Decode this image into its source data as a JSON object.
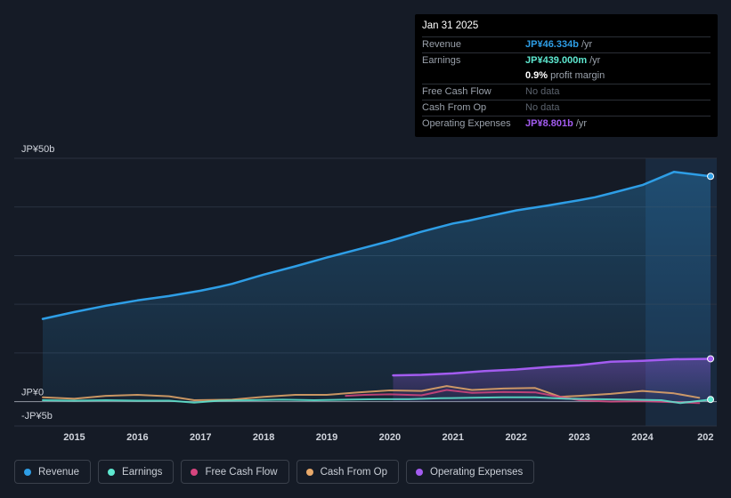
{
  "tooltip": {
    "date": "Jan 31 2025",
    "rows": {
      "revenue": {
        "label": "Revenue",
        "value": "JP¥46.334b",
        "unit": "/yr",
        "color": "#2e9ee6"
      },
      "earnings": {
        "label": "Earnings",
        "value": "JP¥439.000m",
        "unit": "/yr",
        "color": "#5ee8d0"
      },
      "margin": {
        "value": "0.9%",
        "suffix": "profit margin"
      },
      "fcf": {
        "label": "Free Cash Flow",
        "value": "No data"
      },
      "cfo": {
        "label": "Cash From Op",
        "value": "No data"
      },
      "opex": {
        "label": "Operating Expenses",
        "value": "JP¥8.801b",
        "unit": "/yr",
        "color": "#a35cf0"
      }
    }
  },
  "legend": {
    "revenue": {
      "label": "Revenue",
      "color": "#2e9ee6"
    },
    "earnings": {
      "label": "Earnings",
      "color": "#5ee8d0"
    },
    "fcf": {
      "label": "Free Cash Flow",
      "color": "#d6457f"
    },
    "cfo": {
      "label": "Cash From Op",
      "color": "#e8a96a"
    },
    "opex": {
      "label": "Operating Expenses",
      "color": "#a35cf0"
    }
  },
  "chart_data": {
    "type": "line",
    "title": "",
    "xlabel": "",
    "ylabel": "",
    "unit": "JP¥ billions",
    "ylim": [
      -5,
      50
    ],
    "y_tick_labels": [
      "JP¥50b",
      "JP¥0",
      "-JP¥5b"
    ],
    "x_tick_labels": [
      "2015",
      "2016",
      "2017",
      "2018",
      "2019",
      "2020",
      "2021",
      "2022",
      "2023",
      "2024",
      "202"
    ],
    "xlim": [
      2014.5,
      2025.15
    ],
    "highlight_start": 2024.05,
    "series": [
      {
        "name": "Revenue",
        "color": "#2e9ee6",
        "fill": true,
        "x": [
          2014.5,
          2015,
          2015.5,
          2016,
          2016.5,
          2017,
          2017.3,
          2017.5,
          2018,
          2018.5,
          2019,
          2019.5,
          2020,
          2020.5,
          2021,
          2021.25,
          2021.5,
          2022,
          2022.5,
          2023,
          2023.25,
          2023.5,
          2024,
          2024.5,
          2025.08
        ],
        "values": [
          17.0,
          18.4,
          19.7,
          20.8,
          21.7,
          22.8,
          23.6,
          24.2,
          26.1,
          27.8,
          29.6,
          31.3,
          33.0,
          34.9,
          36.6,
          37.2,
          37.9,
          39.3,
          40.3,
          41.4,
          42.0,
          42.8,
          44.5,
          47.2,
          46.3
        ]
      },
      {
        "name": "Operating Expenses",
        "color": "#a35cf0",
        "fill": true,
        "x": [
          2020.05,
          2020.5,
          2021,
          2021.5,
          2022,
          2022.5,
          2023,
          2023.5,
          2024,
          2024.5,
          2025.08
        ],
        "values": [
          5.4,
          5.5,
          5.8,
          6.3,
          6.6,
          7.1,
          7.5,
          8.2,
          8.4,
          8.7,
          8.8
        ]
      },
      {
        "name": "Cash From Op",
        "color": "#e8a96a",
        "fill": false,
        "x": [
          2014.5,
          2015,
          2015.5,
          2016,
          2016.5,
          2016.9,
          2017.5,
          2018,
          2018.5,
          2019,
          2019.5,
          2020,
          2020.5,
          2020.9,
          2021.3,
          2021.8,
          2022.3,
          2022.7,
          2023,
          2023.5,
          2024,
          2024.5,
          2024.9
        ],
        "values": [
          0.9,
          0.6,
          1.2,
          1.4,
          1.1,
          0.3,
          0.4,
          1.0,
          1.4,
          1.4,
          1.9,
          2.3,
          2.2,
          3.2,
          2.4,
          2.7,
          2.8,
          1.0,
          1.2,
          1.6,
          2.2,
          1.7,
          0.8
        ]
      },
      {
        "name": "Free Cash Flow",
        "color": "#d6457f",
        "fill": false,
        "x": [
          2019.3,
          2019.6,
          2020,
          2020.5,
          2020.9,
          2021.3,
          2021.8,
          2022.3,
          2022.6,
          2023,
          2023.5,
          2024,
          2024.5,
          2024.9
        ],
        "values": [
          1.2,
          1.4,
          1.5,
          1.3,
          2.4,
          1.8,
          2.0,
          1.9,
          1.2,
          0.3,
          0.0,
          0.1,
          -0.1,
          -0.3
        ]
      },
      {
        "name": "Earnings",
        "color": "#5ee8d0",
        "fill": false,
        "x": [
          2014.5,
          2015,
          2015.5,
          2016,
          2016.5,
          2016.9,
          2017.3,
          2017.8,
          2018.3,
          2018.8,
          2019.3,
          2019.8,
          2020.3,
          2020.8,
          2021.3,
          2021.8,
          2022.3,
          2022.8,
          2023.3,
          2023.8,
          2024.3,
          2024.6,
          2025.08
        ],
        "values": [
          0.3,
          0.2,
          0.3,
          0.2,
          0.2,
          -0.2,
          0.2,
          0.3,
          0.4,
          0.3,
          0.4,
          0.5,
          0.5,
          0.7,
          0.8,
          0.9,
          0.9,
          0.6,
          0.5,
          0.4,
          0.3,
          -0.3,
          0.44
        ]
      }
    ]
  }
}
